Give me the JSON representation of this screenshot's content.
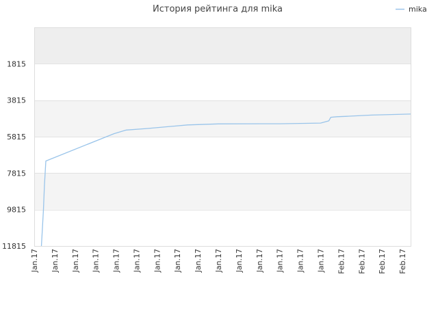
{
  "chart_data": {
    "type": "line",
    "title": "История рейтинга для mika",
    "xlabel": "",
    "ylabel": "",
    "y_inverted": true,
    "ylim": [
      11815,
      -185
    ],
    "y_ticks": [
      1815,
      3815,
      5815,
      7815,
      9815,
      11815
    ],
    "x_tick_labels": [
      "Jan.17",
      "Jan.17",
      "Jan.17",
      "Jan.17",
      "Jan.17",
      "Jan.17",
      "Jan.17",
      "Jan.17",
      "Jan.17",
      "Jan.17",
      "Jan.17",
      "Jan.17",
      "Jan.17",
      "Jan.17",
      "Jan.17",
      "Feb.17",
      "Feb.17",
      "Feb.17",
      "Feb.17"
    ],
    "xlim": [
      0,
      18.4
    ],
    "grid": true,
    "band_colors": [
      "#eeeeee",
      "#ffffff",
      "#f4f4f4",
      "#ffffff",
      "#f4f4f4",
      "#ffffff"
    ],
    "legend": {
      "position": "top-right",
      "entries": [
        "mika"
      ]
    },
    "series": [
      {
        "name": "mika",
        "color": "#99c4ea",
        "x": [
          0.35,
          0.45,
          0.5,
          0.57,
          3.9,
          4.5,
          5.5,
          7.5,
          9.0,
          12.0,
          14.0,
          14.4,
          14.5,
          14.8,
          15.2,
          16.5,
          18.4
        ],
        "y": [
          11815,
          9815,
          8500,
          7150,
          5650,
          5450,
          5370,
          5170,
          5115,
          5105,
          5070,
          4950,
          4750,
          4720,
          4700,
          4630,
          4575
        ]
      }
    ]
  }
}
